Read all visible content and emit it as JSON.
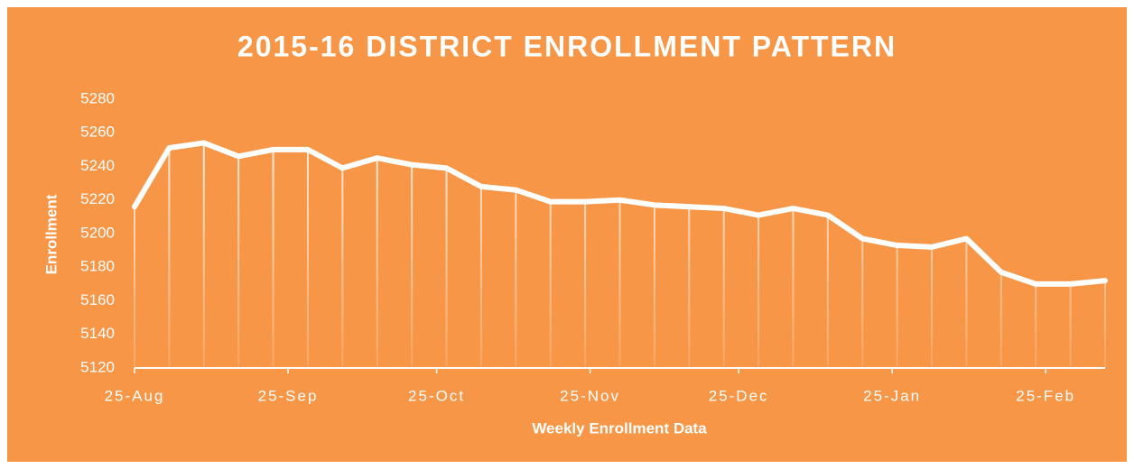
{
  "chart_data": {
    "type": "line",
    "title": "2015-16 DISTRICT ENROLLMENT PATTERN",
    "x_label": "Weekly Enrollment Data",
    "y_label": "Enrollment",
    "x": [
      "2015-08-25",
      "2015-09-01",
      "2015-09-08",
      "2015-09-15",
      "2015-09-22",
      "2015-09-29",
      "2015-10-06",
      "2015-10-13",
      "2015-10-20",
      "2015-10-27",
      "2015-11-03",
      "2015-11-10",
      "2015-11-17",
      "2015-11-24",
      "2015-12-01",
      "2015-12-08",
      "2015-12-15",
      "2015-12-22",
      "2015-12-29",
      "2016-01-05",
      "2016-01-12",
      "2016-01-19",
      "2016-01-26",
      "2016-02-02",
      "2016-02-09",
      "2016-02-16",
      "2016-02-23",
      "2016-03-01",
      "2016-03-08"
    ],
    "series": [
      {
        "name": "Enrollment",
        "color": "#ffffff",
        "values": [
          5216,
          5251,
          5254,
          5246,
          5250,
          5250,
          5239,
          5245,
          5241,
          5239,
          5228,
          5226,
          5219,
          5219,
          5220,
          5217,
          5216,
          5215,
          5211,
          5215,
          5211,
          5197,
          5193,
          5192,
          5197,
          5177,
          5170,
          5170,
          5172
        ]
      }
    ],
    "xlim": [
      "2015-08-25",
      "2016-03-08"
    ],
    "xticks": [
      {
        "value": "2015-08-25",
        "label": "25-Aug"
      },
      {
        "value": "2015-09-25",
        "label": "25-Sep"
      },
      {
        "value": "2015-10-25",
        "label": "25-Oct"
      },
      {
        "value": "2015-11-25",
        "label": "25-Nov"
      },
      {
        "value": "2015-12-25",
        "label": "25-Dec"
      },
      {
        "value": "2016-01-25",
        "label": "25-Jan"
      },
      {
        "value": "2016-02-25",
        "label": "25-Feb"
      }
    ],
    "ylim": [
      5120,
      5280
    ],
    "yticks": [
      5120,
      5140,
      5160,
      5180,
      5200,
      5220,
      5240,
      5260,
      5280
    ],
    "background": "#f79646",
    "drop_lines": true
  }
}
